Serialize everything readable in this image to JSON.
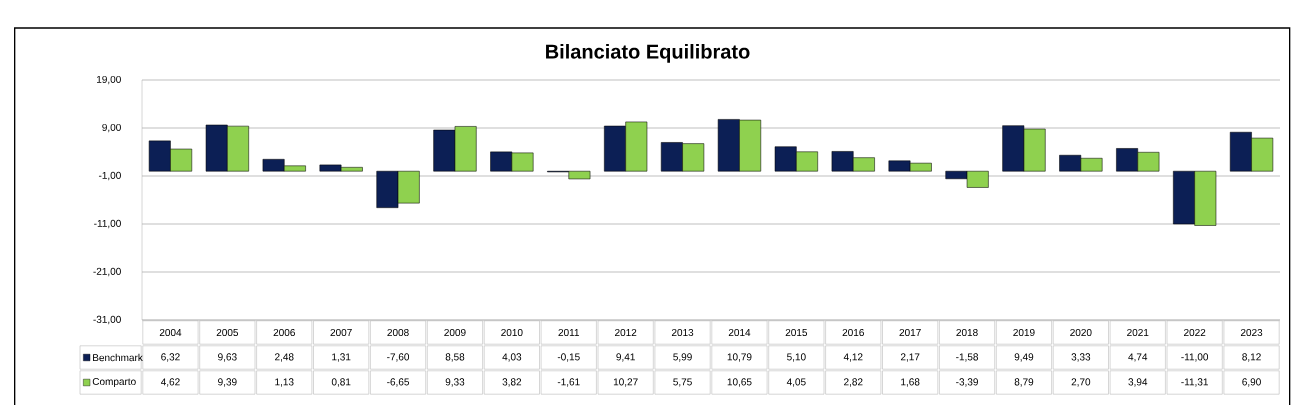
{
  "chart_data": {
    "type": "bar",
    "title": "Bilanciato Equilibrato",
    "categories": [
      "2004",
      "2005",
      "2006",
      "2007",
      "2008",
      "2009",
      "2010",
      "2011",
      "2012",
      "2013",
      "2014",
      "2015",
      "2016",
      "2017",
      "2018",
      "2019",
      "2020",
      "2021",
      "2022",
      "2023"
    ],
    "series": [
      {
        "name": "Benchmark",
        "color": "#0c1f55",
        "values": [
          6.32,
          9.63,
          2.48,
          1.31,
          -7.6,
          8.58,
          4.03,
          -0.15,
          9.41,
          5.99,
          10.79,
          5.1,
          4.12,
          2.17,
          -1.58,
          9.49,
          3.33,
          4.74,
          -11.0,
          8.12
        ],
        "value_labels": [
          "6,32",
          "9,63",
          "2,48",
          "1,31",
          "-7,60",
          "8,58",
          "4,03",
          "-0,15",
          "9,41",
          "5,99",
          "10,79",
          "5,10",
          "4,12",
          "2,17",
          "-1,58",
          "9,49",
          "3,33",
          "4,74",
          "-11,00",
          "8,12"
        ]
      },
      {
        "name": "Comparto",
        "color": "#8fd14f",
        "values": [
          4.62,
          9.39,
          1.13,
          0.81,
          -6.65,
          9.33,
          3.82,
          -1.61,
          10.27,
          5.75,
          10.65,
          4.05,
          2.82,
          1.68,
          -3.39,
          8.79,
          2.7,
          3.94,
          -11.31,
          6.9
        ],
        "value_labels": [
          "4,62",
          "9,39",
          "1,13",
          "0,81",
          "-6,65",
          "9,33",
          "3,82",
          "-1,61",
          "10,27",
          "5,75",
          "10,65",
          "4,05",
          "2,82",
          "1,68",
          "-3,39",
          "8,79",
          "2,70",
          "3,94",
          "-11,31",
          "6,90"
        ]
      }
    ],
    "ylim": [
      -31,
      19
    ],
    "yticks": [
      {
        "value": -31,
        "label": "-31,00"
      },
      {
        "value": -21,
        "label": "-21,00"
      },
      {
        "value": -11,
        "label": "-11,00"
      },
      {
        "value": -1,
        "label": "-1,00"
      },
      {
        "value": 9,
        "label": "9,00"
      },
      {
        "value": 19,
        "label": "19,00"
      }
    ],
    "grid": "y",
    "legend": "bottom"
  }
}
